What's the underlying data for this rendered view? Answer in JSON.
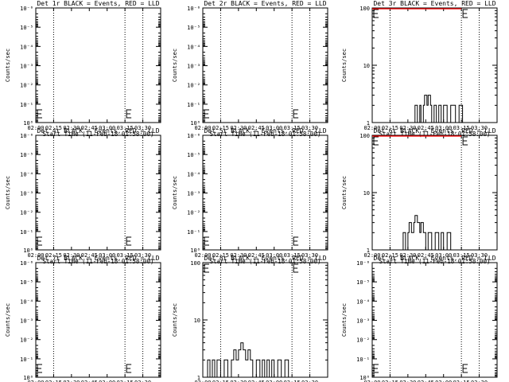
{
  "chart_data": [
    {
      "type": "line",
      "title": "Det 1r BLACK = Events, RED = LLD",
      "xlabel": "Start Time (11-Feb-18 01:58:00)",
      "ylabel": "Counts/sec",
      "yscale": "log",
      "ylim": [
        0.9,
        1e-06
      ],
      "ytick_labels": [
        "10⁰",
        "10⁻¹",
        "10⁻²",
        "10⁻³",
        "10⁻⁴",
        "10⁻⁵",
        "10⁻⁶"
      ],
      "x_tick_labels": [
        "02:00",
        "02:15",
        "02:30",
        "02:45",
        "03:00",
        "03:15",
        "03:30"
      ],
      "markers": [
        "02:15",
        "03:15",
        "03:30"
      ],
      "corner_marks": [
        "02:00",
        "03:15"
      ],
      "series": []
    },
    {
      "type": "line",
      "title": "Det 2r BLACK = Events, RED = LLD",
      "xlabel": "Start Time (11-Feb-18 01:58:00)",
      "ylabel": "Counts/sec",
      "yscale": "log",
      "ylim": [
        0.9,
        1e-06
      ],
      "ytick_labels": [
        "10⁰",
        "10⁻¹",
        "10⁻²",
        "10⁻³",
        "10⁻⁴",
        "10⁻⁵",
        "10⁻⁶"
      ],
      "x_tick_labels": [
        "02:00",
        "02:15",
        "02:30",
        "02:45",
        "03:00",
        "03:15",
        "03:30"
      ],
      "markers": [
        "02:15",
        "03:15",
        "03:30"
      ],
      "corner_marks": [
        "02:00",
        "03:15"
      ],
      "series": []
    },
    {
      "type": "line",
      "title": "Det 3r BLACK = Events, RED = LLD",
      "xlabel": "Start Time (11-Feb-18 01:58:00)",
      "ylabel": "Counts/sec",
      "yscale": "log",
      "ylim": [
        1,
        100
      ],
      "ytick_labels": [
        "1",
        "10",
        "100"
      ],
      "x_tick_labels": [
        "02:00",
        "02:15",
        "02:30",
        "02:45",
        "03:00",
        "03:15",
        "03:30"
      ],
      "markers": [
        "02:15",
        "03:15",
        "03:30"
      ],
      "corner_marks": [
        "02:00",
        "03:15"
      ],
      "series": [
        {
          "color": "#000000",
          "x": [
            "02:30",
            "02:36",
            "02:36",
            "02:38",
            "02:38",
            "02:40",
            "02:40",
            "02:41",
            "02:41",
            "02:43",
            "02:43",
            "02:44",
            "02:44",
            "02:46",
            "02:46",
            "02:47",
            "02:47",
            "02:49",
            "02:49",
            "02:50",
            "02:50",
            "02:52",
            "02:52",
            "02:54",
            "02:54",
            "02:56",
            "02:56",
            "02:58",
            "02:58",
            "03:00",
            "03:00",
            "03:03",
            "03:03",
            "03:06",
            "03:06",
            "03:10",
            "03:10",
            "03:13",
            "03:13",
            "03:16",
            "03:16",
            "03:20"
          ],
          "y": [
            1,
            1,
            2,
            2,
            1,
            1,
            2,
            2,
            1,
            1,
            2,
            2,
            3,
            3,
            2,
            2,
            3,
            3,
            2,
            2,
            1,
            1,
            2,
            2,
            1,
            1,
            2,
            2,
            1,
            1,
            2,
            2,
            1,
            1,
            2,
            2,
            1,
            1,
            2,
            2,
            1,
            1
          ]
        },
        {
          "color": "#ff0000",
          "x": [
            "02:00",
            "02:05",
            "02:10",
            "02:15",
            "02:20",
            "03:15"
          ],
          "y": [
            100,
            98,
            97,
            99,
            100,
            100
          ]
        }
      ]
    },
    {
      "type": "line",
      "title": "Det 4r BLACK = Events, RED = LLD",
      "xlabel": "Start Time (11-Feb-18 01:58:00)",
      "ylabel": "Counts/sec",
      "yscale": "log",
      "ylim": [
        0.9,
        1e-06
      ],
      "ytick_labels": [
        "10⁰",
        "10⁻¹",
        "10⁻²",
        "10⁻³",
        "10⁻⁴",
        "10⁻⁵",
        "10⁻⁶"
      ],
      "x_tick_labels": [
        "02:00",
        "02:15",
        "02:30",
        "02:45",
        "03:00",
        "03:15",
        "03:30"
      ],
      "markers": [
        "02:15",
        "03:15",
        "03:30"
      ],
      "corner_marks": [
        "02:00",
        "03:15"
      ],
      "series": []
    },
    {
      "type": "line",
      "title": "Det 5r BLACK = Events, RED = LLD",
      "xlabel": "Start Time (11-Feb-18 01:58:00)",
      "ylabel": "Counts/sec",
      "yscale": "log",
      "ylim": [
        0.9,
        1e-06
      ],
      "ytick_labels": [
        "10⁰",
        "10⁻¹",
        "10⁻²",
        "10⁻³",
        "10⁻⁴",
        "10⁻⁵",
        "10⁻⁶"
      ],
      "x_tick_labels": [
        "02:00",
        "02:15",
        "02:30",
        "02:45",
        "03:00",
        "03:15",
        "03:30"
      ],
      "markers": [
        "02:15",
        "03:15",
        "03:30"
      ],
      "corner_marks": [
        "02:00",
        "03:15"
      ],
      "series": []
    },
    {
      "type": "line",
      "title": "Det 6r BLACK = Events, RED = LLD",
      "xlabel": "Start Time (11-Feb-18 01:58:00)",
      "ylabel": "Counts/sec",
      "yscale": "log",
      "ylim": [
        1,
        100
      ],
      "ytick_labels": [
        "1",
        "10",
        "100"
      ],
      "x_tick_labels": [
        "02:00",
        "02:15",
        "02:30",
        "02:45",
        "03:00",
        "03:15",
        "03:30"
      ],
      "markers": [
        "02:15",
        "03:15",
        "03:30"
      ],
      "corner_marks": [
        "02:00",
        "03:15"
      ],
      "series": [
        {
          "color": "#000000",
          "x": [
            "02:23",
            "02:26",
            "02:26",
            "02:28",
            "02:28",
            "02:30",
            "02:30",
            "02:31",
            "02:31",
            "02:33",
            "02:33",
            "02:35",
            "02:35",
            "02:36",
            "02:36",
            "02:38",
            "02:38",
            "02:40",
            "02:40",
            "02:41",
            "02:41",
            "02:43",
            "02:43",
            "02:45",
            "02:45",
            "02:47",
            "02:47",
            "02:50",
            "02:50",
            "02:53",
            "02:53",
            "02:56",
            "02:56",
            "02:58",
            "02:58",
            "03:00",
            "03:00",
            "03:03",
            "03:03",
            "03:06",
            "03:06",
            "03:10"
          ],
          "y": [
            1,
            1,
            2,
            2,
            1,
            1,
            2,
            2,
            3,
            3,
            2,
            2,
            3,
            3,
            4,
            4,
            3,
            3,
            2,
            2,
            3,
            3,
            2,
            2,
            1,
            1,
            2,
            2,
            1,
            1,
            2,
            2,
            1,
            1,
            2,
            2,
            1,
            1,
            2,
            2,
            1,
            1
          ]
        },
        {
          "color": "#ff0000",
          "x": [
            "02:00",
            "02:06",
            "02:11",
            "02:16",
            "03:15"
          ],
          "y": [
            100,
            97,
            98,
            100,
            100
          ]
        }
      ]
    },
    {
      "type": "line",
      "title": "Det 7r BLACK = Events, RED = LLD",
      "xlabel": "Start Time (11-Feb-18 01:58:00)",
      "ylabel": "Counts/sec",
      "yscale": "log",
      "ylim": [
        0.9,
        1e-06
      ],
      "ytick_labels": [
        "10⁰",
        "10⁻¹",
        "10⁻²",
        "10⁻³",
        "10⁻⁴",
        "10⁻⁵",
        "10⁻⁶"
      ],
      "x_tick_labels": [
        "02:00",
        "02:15",
        "02:30",
        "02:45",
        "03:00",
        "03:15",
        "03:30"
      ],
      "markers": [
        "02:15",
        "03:15",
        "03:30"
      ],
      "corner_marks": [
        "02:00",
        "03:15"
      ],
      "series": []
    },
    {
      "type": "line",
      "title": "Det 8r BLACK = Events, RED = LLD",
      "xlabel": "Start Time (11-Feb-18 01:58:00)",
      "ylabel": "Counts/sec",
      "yscale": "log",
      "ylim": [
        1,
        100
      ],
      "ytick_labels": [
        "1",
        "10",
        "100"
      ],
      "x_tick_labels": [
        "02:00",
        "02:15",
        "02:30",
        "02:45",
        "03:00",
        "03:15",
        "03:30"
      ],
      "markers": [
        "02:15",
        "03:15",
        "03:30"
      ],
      "corner_marks": [
        "02:00",
        "03:15"
      ],
      "series": [
        {
          "color": "#000000",
          "x": [
            "02:00",
            "02:04",
            "02:04",
            "02:06",
            "02:06",
            "02:08",
            "02:08",
            "02:10",
            "02:10",
            "02:12",
            "02:12",
            "02:15",
            "02:15",
            "02:18",
            "02:18",
            "02:21",
            "02:21",
            "02:24",
            "02:24",
            "02:26",
            "02:26",
            "02:28",
            "02:28",
            "02:30",
            "02:30",
            "02:32",
            "02:32",
            "02:34",
            "02:34",
            "02:36",
            "02:36",
            "02:38",
            "02:38",
            "02:40",
            "02:40",
            "02:42",
            "02:42",
            "02:45",
            "02:45",
            "02:48",
            "02:48",
            "02:50",
            "02:50",
            "02:52",
            "02:52",
            "02:54",
            "02:54",
            "02:56",
            "02:56",
            "02:58",
            "02:58",
            "03:00",
            "03:00",
            "03:03",
            "03:03",
            "03:06",
            "03:06",
            "03:09",
            "03:09",
            "03:12",
            "03:12",
            "03:14"
          ],
          "y": [
            1,
            1,
            2,
            2,
            1,
            1,
            2,
            2,
            1,
            1,
            2,
            2,
            1,
            1,
            2,
            2,
            1,
            1,
            2,
            2,
            3,
            3,
            2,
            2,
            3,
            3,
            4,
            4,
            3,
            3,
            2,
            2,
            3,
            3,
            2,
            2,
            1,
            1,
            2,
            2,
            1,
            1,
            2,
            2,
            1,
            1,
            2,
            2,
            1,
            1,
            2,
            2,
            1,
            1,
            2,
            2,
            1,
            1,
            2,
            2,
            1,
            1
          ]
        }
      ]
    },
    {
      "type": "line",
      "title": "Det 9r BLACK = Events, RED = LLD",
      "xlabel": "Start Time (11-Feb-18 01:58:00)",
      "ylabel": "Counts/sec",
      "yscale": "log",
      "ylim": [
        0.9,
        1e-06
      ],
      "ytick_labels": [
        "10⁰",
        "10⁻¹",
        "10⁻²",
        "10⁻³",
        "10⁻⁴",
        "10⁻⁵",
        "10⁻⁶"
      ],
      "x_tick_labels": [
        "02:00",
        "02:15",
        "02:30",
        "02:45",
        "03:00",
        "03:15",
        "03:30"
      ],
      "markers": [
        "02:15",
        "03:15",
        "03:30"
      ],
      "corner_marks": [
        "02:00",
        "03:15"
      ],
      "series": []
    }
  ]
}
